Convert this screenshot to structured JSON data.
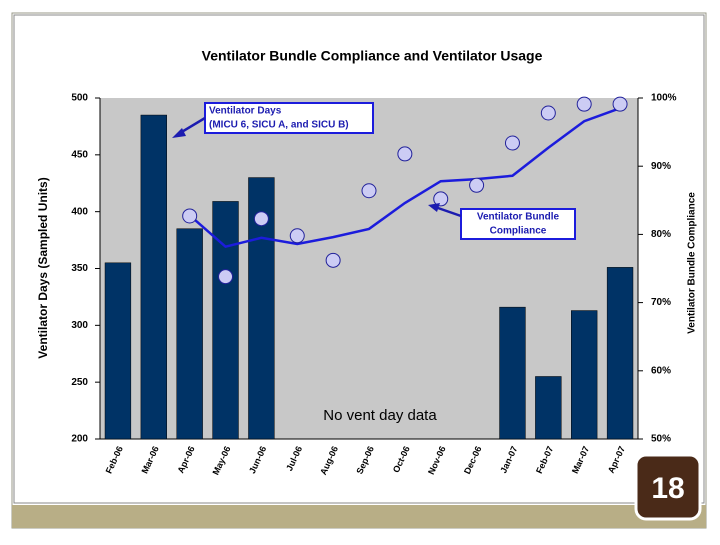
{
  "chart_data": {
    "type": "bar",
    "title": "Ventilator Bundle Compliance and Ventilator Usage",
    "y_label": "Ventilator Days (Sampled Units)",
    "y2_label": "Ventilator Bundle Compliance",
    "categories": [
      "Feb-06",
      "Mar-06",
      "Apr-06",
      "May-06",
      "Jun-06",
      "Jul-06",
      "Aug-06",
      "Sep-06",
      "Oct-06",
      "Nov-06",
      "Dec-06",
      "Jan-07",
      "Feb-07",
      "Mar-07",
      "Apr-07"
    ],
    "series": [
      {
        "type": "bar",
        "color": "#003366",
        "values": [
          355,
          485,
          385,
          409,
          430,
          null,
          null,
          null,
          null,
          null,
          null,
          316,
          255,
          313,
          351
        ]
      },
      {
        "type": "line",
        "axis": "y2",
        "color": "#1c1cdc",
        "values": [
          null,
          null,
          82.8,
          78.2,
          79.5,
          78.6,
          79.6,
          80.8,
          84.6,
          87.8,
          88.1,
          88.6,
          92.7,
          96.6,
          98.5
        ]
      },
      {
        "type": "scatter",
        "axis": "y2",
        "color": "#ccccf4",
        "values": [
          null,
          null,
          82.7,
          73.8,
          82.3,
          79.8,
          76.2,
          86.4,
          91.8,
          85.2,
          87.2,
          93.4,
          97.8,
          99.1,
          99.1
        ]
      }
    ],
    "ylim": [
      200,
      500
    ],
    "yticks": [
      200,
      250,
      300,
      350,
      400,
      450,
      500
    ],
    "y2lim": [
      50,
      100
    ],
    "y2ticks": [
      {
        "value": 50,
        "label": "50%"
      },
      {
        "value": 60,
        "label": "60%"
      },
      {
        "value": 70,
        "label": "70%"
      },
      {
        "value": 80,
        "label": "80%"
      },
      {
        "value": 90,
        "label": "90%"
      },
      {
        "value": 100,
        "label": "100%"
      }
    ],
    "annotations": [
      "Ventilator Days",
      "(MICU 6, SICU A, and SICU B)",
      "Ventilator Bundle",
      "Compliance",
      "No vent day data"
    ],
    "slide_number": "18"
  }
}
